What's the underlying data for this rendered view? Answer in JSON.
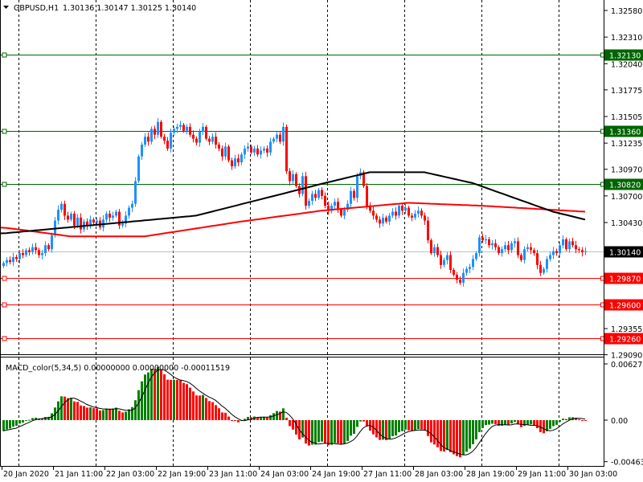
{
  "header": {
    "symbol": "GBPUSD,H1",
    "ohlc": "1.30136 1.30147 1.30125 1.30140"
  },
  "colors": {
    "bull": "#1e90ff",
    "bear": "#ff0000",
    "support": "#ff0000",
    "resistance": "#006400",
    "ma_fast": "#000000",
    "ma_slow": "#ff0000",
    "macd_up": "#008000",
    "macd_down": "#ff0000"
  },
  "chart_data": [
    {
      "type": "candlestick",
      "title": "GBPUSD,H1",
      "ylim": [
        1.2909,
        1.3258
      ],
      "y_ticks": [
        "1.32580",
        "1.32310",
        "1.32040",
        "1.31775",
        "1.31505",
        "1.31235",
        "1.30970",
        "1.30700",
        "1.30430",
        "1.29355",
        "1.29090"
      ],
      "x_ticks": [
        "20 Jan 2020",
        "21 Jan 11:00",
        "22 Jan 03:00",
        "22 Jan 19:00",
        "23 Jan 11:00",
        "24 Jan 03:00",
        "24 Jan 19:00",
        "27 Jan 11:00",
        "28 Jan 03:00",
        "28 Jan 19:00",
        "29 Jan 11:00",
        "30 Jan 03:00"
      ],
      "current_price": {
        "value": 1.3014,
        "label": "1.30140"
      },
      "levels": [
        {
          "value": 1.3213,
          "label": "1.32130",
          "kind": "resistance"
        },
        {
          "value": 1.3136,
          "label": "1.31360",
          "kind": "resistance"
        },
        {
          "value": 1.3082,
          "label": "1.30820",
          "kind": "resistance"
        },
        {
          "value": 1.2987,
          "label": "1.29870",
          "kind": "support"
        },
        {
          "value": 1.296,
          "label": "1.29600",
          "kind": "support"
        },
        {
          "value": 1.2926,
          "label": "1.29260",
          "kind": "support"
        }
      ],
      "closes": [
        1.3002,
        1.3005,
        1.3003,
        1.3008,
        1.3006,
        1.3012,
        1.301,
        1.3015,
        1.3013,
        1.3018,
        1.3015,
        1.301,
        1.3012,
        1.302,
        1.3016,
        1.303,
        1.3045,
        1.3056,
        1.3062,
        1.305,
        1.3046,
        1.3052,
        1.304,
        1.3048,
        1.3036,
        1.3044,
        1.304,
        1.3046,
        1.3043,
        1.3045,
        1.3038,
        1.3046,
        1.3052,
        1.3048,
        1.305,
        1.3054,
        1.304,
        1.3042,
        1.305,
        1.3058,
        1.3062,
        1.3085,
        1.311,
        1.3122,
        1.313,
        1.3125,
        1.3138,
        1.3132,
        1.3145,
        1.313,
        1.3126,
        1.3118,
        1.3134,
        1.3138,
        1.314,
        1.3142,
        1.3136,
        1.314,
        1.3132,
        1.3128,
        1.3124,
        1.3135,
        1.314,
        1.3128,
        1.3125,
        1.313,
        1.3122,
        1.3118,
        1.311,
        1.312,
        1.3106,
        1.31,
        1.3108,
        1.3104,
        1.3112,
        1.3118,
        1.312,
        1.3114,
        1.3118,
        1.3112,
        1.3116,
        1.3118,
        1.3114,
        1.3125,
        1.3128,
        1.3132,
        1.3125,
        1.314,
        1.3095,
        1.3085,
        1.3092,
        1.308,
        1.3072,
        1.309,
        1.306,
        1.3065,
        1.3072,
        1.3068,
        1.3076,
        1.307,
        1.306,
        1.3055,
        1.306,
        1.3064,
        1.3056,
        1.305,
        1.3056,
        1.3062,
        1.3075,
        1.3068,
        1.309,
        1.3094,
        1.308,
        1.306,
        1.3055,
        1.305,
        1.3046,
        1.3042,
        1.3048,
        1.3044,
        1.305,
        1.3054,
        1.305,
        1.306,
        1.3055,
        1.3058,
        1.305,
        1.3048,
        1.3052,
        1.3055,
        1.305,
        1.3045,
        1.3025,
        1.3012,
        1.3018,
        1.301,
        1.3,
        1.3005,
        1.301,
        1.2995,
        1.299,
        1.2985,
        1.2982,
        1.2992,
        1.2996,
        1.2998,
        1.3006,
        1.3012,
        1.3028,
        1.3025,
        1.3026,
        1.302,
        1.3022,
        1.3018,
        1.3012,
        1.3016,
        1.302,
        1.3015,
        1.3022,
        1.3024,
        1.301,
        1.3005,
        1.3016,
        1.3018,
        1.3015,
        1.3012,
        1.3,
        1.2992,
        1.2996,
        1.3006,
        1.301,
        1.3014,
        1.3012,
        1.302,
        1.3026,
        1.3016,
        1.3024,
        1.302,
        1.3016,
        1.3015,
        1.3013,
        1.3014
      ],
      "ma_fast": [
        [
          0,
          1.3032
        ],
        [
          60,
          1.305
        ],
        [
          100,
          1.3083
        ],
        [
          114,
          1.3094
        ],
        [
          131,
          1.3094
        ],
        [
          146,
          1.3083
        ],
        [
          171,
          1.3054
        ],
        [
          181,
          1.3046
        ]
      ],
      "ma_slow": [
        [
          0,
          1.3038
        ],
        [
          21,
          1.3029
        ],
        [
          44,
          1.3029
        ],
        [
          74,
          1.3044
        ],
        [
          99,
          1.3055
        ],
        [
          126,
          1.3063
        ],
        [
          149,
          1.306
        ],
        [
          181,
          1.3054
        ]
      ]
    },
    {
      "type": "bar",
      "title": "MACD_color(5,34,5) 0.00000000 0.00000000 -0.00011519",
      "ylim": [
        -0.00463,
        0.006273
      ],
      "y_ticks": [
        "0.0062730",
        "0.00",
        "-0.004630"
      ]
    }
  ]
}
